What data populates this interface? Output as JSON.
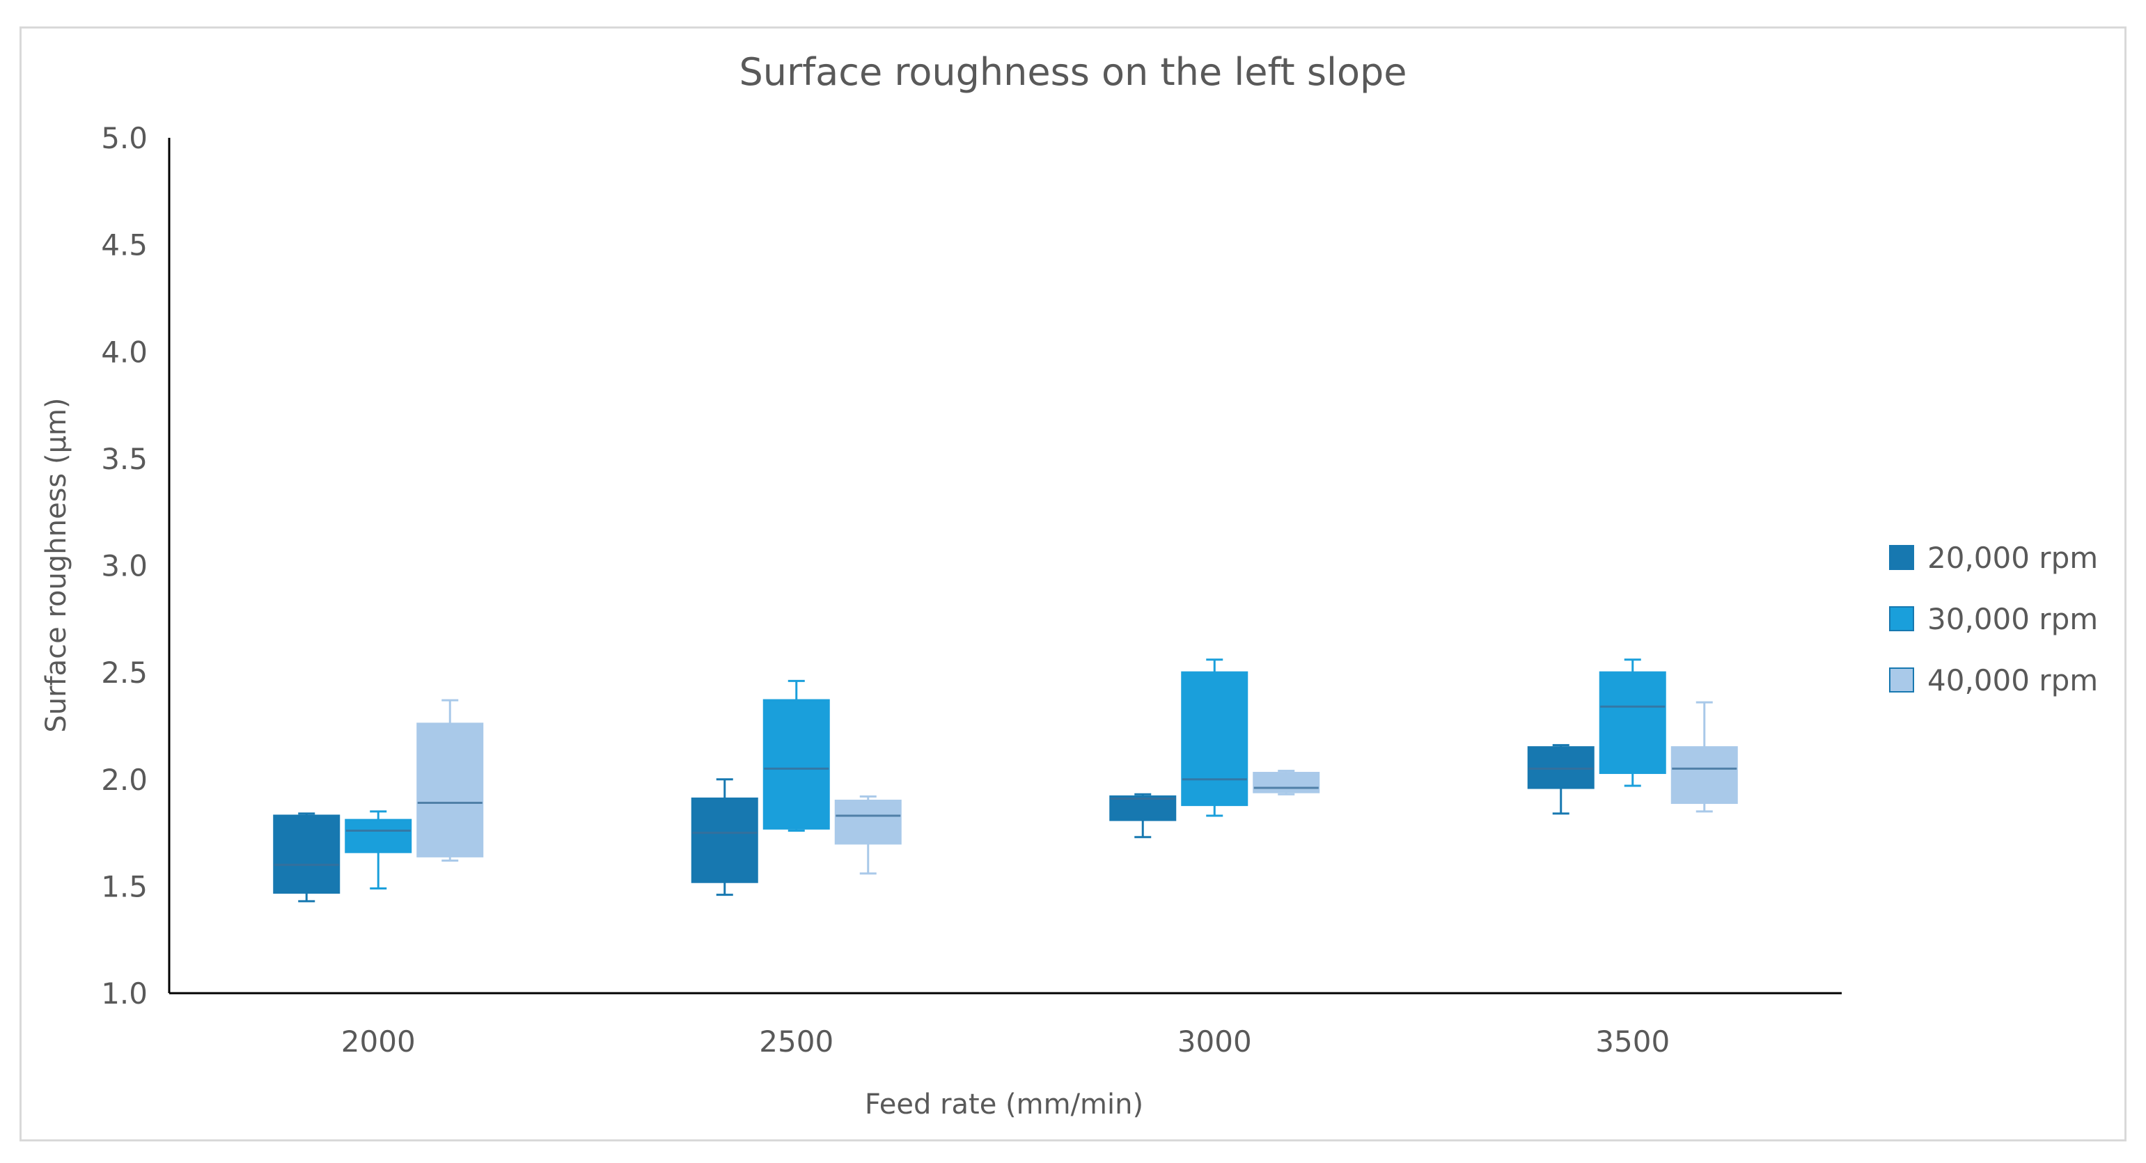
{
  "chart_data": {
    "type": "box",
    "title": "Surface roughness on the left slope",
    "xlabel": "Feed rate (mm/min)",
    "ylabel": "Surface roughness (µm)",
    "ylim": [
      1.0,
      5.0
    ],
    "yticks": [
      "1.0",
      "1.5",
      "2.0",
      "2.5",
      "3.0",
      "3.5",
      "4.0",
      "4.5",
      "5.0"
    ],
    "categories": [
      "2000",
      "2500",
      "3000",
      "3500"
    ],
    "legend_position": "right",
    "series": [
      {
        "name": "20,000 rpm",
        "color": "#1778b0",
        "boxes": [
          {
            "min": 1.43,
            "q1": 1.47,
            "median": 1.6,
            "q3": 1.83,
            "max": 1.84
          },
          {
            "min": 1.46,
            "q1": 1.52,
            "median": 1.75,
            "q3": 1.91,
            "max": 2.0
          },
          {
            "min": 1.73,
            "q1": 1.81,
            "median": 1.91,
            "q3": 1.92,
            "max": 1.93
          },
          {
            "min": 1.84,
            "q1": 1.96,
            "median": 2.05,
            "q3": 2.15,
            "max": 2.16
          }
        ]
      },
      {
        "name": "30,000 rpm",
        "color": "#1a9fdb",
        "boxes": [
          {
            "min": 1.49,
            "q1": 1.66,
            "median": 1.76,
            "q3": 1.81,
            "max": 1.85
          },
          {
            "min": 1.76,
            "q1": 1.77,
            "median": 2.05,
            "q3": 2.37,
            "max": 2.46
          },
          {
            "min": 1.83,
            "q1": 1.88,
            "median": 2.0,
            "q3": 2.5,
            "max": 2.56
          },
          {
            "min": 1.97,
            "q1": 2.03,
            "median": 2.34,
            "q3": 2.5,
            "max": 2.56
          }
        ]
      },
      {
        "name": "40,000 rpm",
        "color": "#a9c9e9",
        "boxes": [
          {
            "min": 1.62,
            "q1": 1.64,
            "median": 1.89,
            "q3": 2.26,
            "max": 2.37
          },
          {
            "min": 1.56,
            "q1": 1.7,
            "median": 1.83,
            "q3": 1.9,
            "max": 1.92
          },
          {
            "min": 1.93,
            "q1": 1.94,
            "median": 1.96,
            "q3": 2.03,
            "max": 2.04
          },
          {
            "min": 1.85,
            "q1": 1.89,
            "median": 2.05,
            "q3": 2.15,
            "max": 2.36
          }
        ]
      }
    ]
  }
}
